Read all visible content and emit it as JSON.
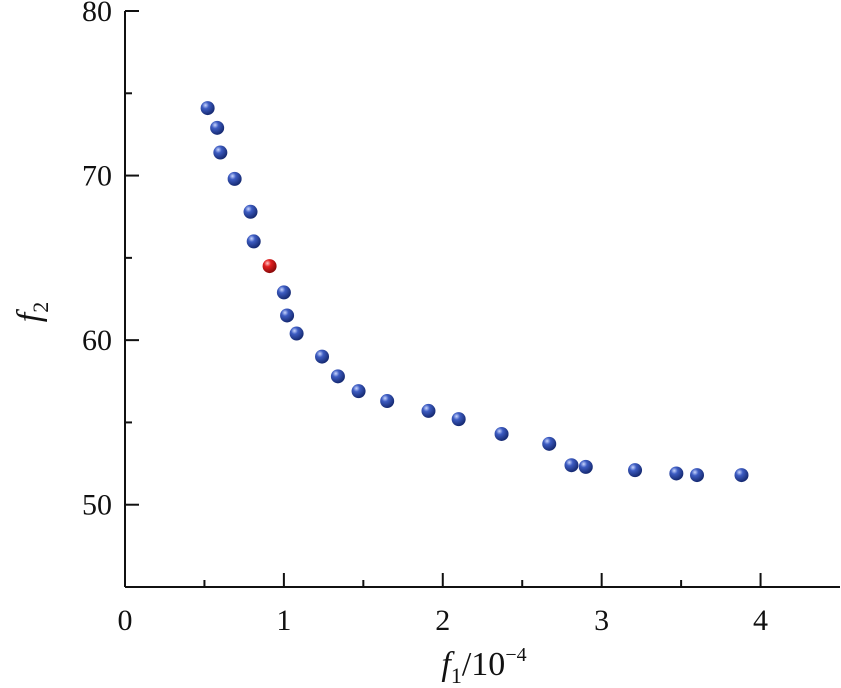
{
  "chart_data": {
    "type": "scatter",
    "xlim": [
      0,
      4.5
    ],
    "ylim": [
      45,
      80
    ],
    "x_ticks": [
      0,
      1,
      2,
      3,
      4
    ],
    "x_tick_labels": [
      "0",
      "1",
      "2",
      "3",
      "4"
    ],
    "y_ticks": [
      50,
      60,
      70,
      80
    ],
    "y_tick_labels": [
      "50",
      "60",
      "70",
      "80"
    ],
    "xlabel": {
      "main": "f",
      "sub": "1",
      "mid": "/10",
      "sup": "−4"
    },
    "ylabel": {
      "main": "f",
      "sub": "2"
    },
    "grid": false,
    "series": [
      {
        "color": "#2f4fa8",
        "points": [
          [
            0.52,
            74.1
          ],
          [
            0.58,
            72.9
          ],
          [
            0.6,
            71.4
          ],
          [
            0.69,
            69.8
          ],
          [
            0.79,
            67.8
          ],
          [
            0.81,
            66.0
          ],
          [
            1.0,
            62.9
          ],
          [
            1.02,
            61.5
          ],
          [
            1.08,
            60.4
          ],
          [
            1.24,
            59.0
          ],
          [
            1.34,
            57.8
          ],
          [
            1.47,
            56.9
          ],
          [
            1.65,
            56.3
          ],
          [
            1.91,
            55.7
          ],
          [
            2.1,
            55.2
          ],
          [
            2.37,
            54.3
          ],
          [
            2.67,
            53.7
          ],
          [
            2.81,
            52.4
          ],
          [
            2.9,
            52.3
          ],
          [
            3.21,
            52.1
          ],
          [
            3.47,
            51.9
          ],
          [
            3.6,
            51.8
          ],
          [
            3.88,
            51.8
          ]
        ]
      },
      {
        "color": "#d01a1a",
        "points": [
          [
            0.91,
            64.5
          ]
        ]
      }
    ]
  }
}
